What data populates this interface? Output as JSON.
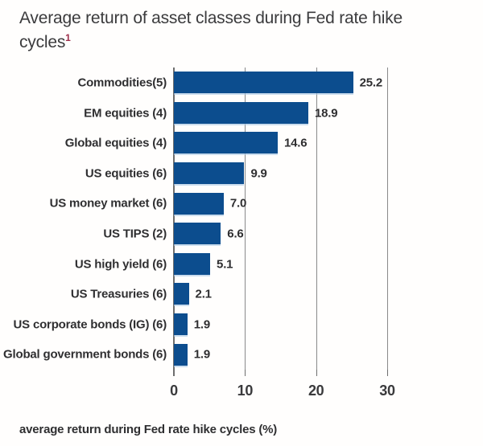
{
  "title": {
    "text": "Average return of asset classes during Fed rate hike cycles",
    "superscript": "1"
  },
  "chart_data": {
    "type": "bar",
    "orientation": "horizontal",
    "title": "Average return of asset classes during Fed rate hike cycles",
    "title_footnote_marker": "1",
    "categories": [
      "Commodities(5)",
      "EM equities (4)",
      "Global equities (4)",
      "US equities (6)",
      "US money market (6)",
      "US TIPS (2)",
      "US high yield (6)",
      "US Treasuries (6)",
      "US corporate bonds (IG) (6)",
      "Global government bonds (6)"
    ],
    "values": [
      25.2,
      18.9,
      14.6,
      9.9,
      7.0,
      6.6,
      5.1,
      2.1,
      1.9,
      1.9
    ],
    "value_labels": [
      "25.2",
      "18.9",
      "14.6",
      "9.9",
      "7.0",
      "6.6",
      "5.1",
      "2.1",
      "1.9",
      "1.9"
    ],
    "xlabel": "average return during Fed rate hike cycles (%)",
    "x_ticks": [
      0,
      10,
      20,
      30
    ],
    "x_tick_labels": [
      "0",
      "10",
      "20",
      "30"
    ],
    "xlim": [
      0,
      31
    ],
    "grid": "vertical",
    "legend": "none",
    "bar_color": "#0c4d8e",
    "gridline_color": "#8a8a8a",
    "text_color": "#2f2f31",
    "footnote_color": "#9d2c49"
  }
}
